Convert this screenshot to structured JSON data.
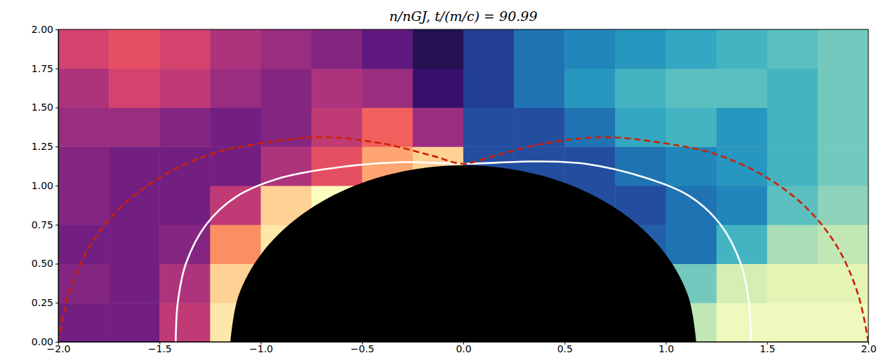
{
  "chart_data": {
    "type": "heatmap",
    "title": "n/nGJ, t/(m/c) = 90.99",
    "xlim": [
      -2,
      2
    ],
    "ylim": [
      0,
      2
    ],
    "xticks": [
      {
        "value": -2,
        "label": "−2.0"
      },
      {
        "value": -1.5,
        "label": "−1.5"
      },
      {
        "value": -1,
        "label": "−1.0"
      },
      {
        "value": -0.5,
        "label": "−0.5"
      },
      {
        "value": 0,
        "label": "0.0"
      },
      {
        "value": 0.5,
        "label": "0.5"
      },
      {
        "value": 1,
        "label": "1.0"
      },
      {
        "value": 1.5,
        "label": "1.5"
      },
      {
        "value": 2,
        "label": "2.0"
      }
    ],
    "yticks": [
      {
        "value": 0,
        "label": "0.00"
      },
      {
        "value": 0.25,
        "label": "0.25"
      },
      {
        "value": 0.5,
        "label": "0.50"
      },
      {
        "value": 0.75,
        "label": "0.75"
      },
      {
        "value": 1,
        "label": "1.00"
      },
      {
        "value": 1.25,
        "label": "1.25"
      },
      {
        "value": 1.5,
        "label": "1.50"
      },
      {
        "value": 1.75,
        "label": "1.75"
      },
      {
        "value": 2,
        "label": "2.00"
      }
    ],
    "x_bins": [
      -2,
      -1.75,
      -1.5,
      -1.25,
      -1,
      -0.75,
      -0.5,
      -0.25,
      0,
      0.25,
      0.5,
      0.75,
      1,
      1.25,
      1.5,
      1.75,
      2
    ],
    "y_bins": [
      0,
      0.25,
      0.5,
      0.75,
      1,
      1.25,
      1.5,
      1.75,
      2
    ],
    "clim": [
      0,
      1
    ],
    "cells": [
      [
        0.3,
        0.3,
        0.5,
        0.95,
        1,
        1,
        1,
        1,
        0.2,
        0.2,
        0.2,
        0.4,
        0.75,
        0.9,
        0.9,
        0.9
      ],
      [
        0.35,
        0.3,
        0.45,
        0.9,
        1,
        1,
        1,
        1,
        0.2,
        0.2,
        0.2,
        0.3,
        0.6,
        0.8,
        0.85,
        0.85
      ],
      [
        0.3,
        0.3,
        0.35,
        0.75,
        0.95,
        1,
        1,
        1,
        0.2,
        0.2,
        0.2,
        0.25,
        0.3,
        0.5,
        0.7,
        0.75
      ],
      [
        0.35,
        0.3,
        0.3,
        0.5,
        0.9,
        1,
        1,
        1,
        0.2,
        0.2,
        0.2,
        0.2,
        0.3,
        0.35,
        0.55,
        0.65
      ],
      [
        0.35,
        0.3,
        0.3,
        0.3,
        0.45,
        0.6,
        0.8,
        0.9,
        0.2,
        0.2,
        0.2,
        0.3,
        0.35,
        0.4,
        0.5,
        0.6
      ],
      [
        0.4,
        0.4,
        0.35,
        0.3,
        0.35,
        0.5,
        0.65,
        0.4,
        0.2,
        0.2,
        0.3,
        0.45,
        0.5,
        0.4,
        0.5,
        0.6
      ],
      [
        0.45,
        0.55,
        0.5,
        0.4,
        0.35,
        0.45,
        0.4,
        0.15,
        0.15,
        0.3,
        0.4,
        0.5,
        0.55,
        0.55,
        0.5,
        0.6
      ],
      [
        0.55,
        0.6,
        0.55,
        0.45,
        0.4,
        0.35,
        0.25,
        0.1,
        0.15,
        0.3,
        0.35,
        0.4,
        0.45,
        0.5,
        0.55,
        0.6
      ]
    ],
    "series": [
      {
        "type": "area",
        "color": "#000000",
        "x": [
          -1.15,
          -1.111,
          -0.996,
          -0.813,
          -0.575,
          -0.298,
          0,
          0.298,
          0.575,
          0.813,
          0.996,
          1.111,
          1.15
        ],
        "values": [
          0,
          0.292,
          0.565,
          0.799,
          0.979,
          1.091,
          1.13,
          1.091,
          0.979,
          0.799,
          0.565,
          0.292,
          0
        ]
      },
      {
        "type": "line",
        "color": "#ffffff",
        "x": [
          -1.42,
          -1.41,
          -1.37,
          -1.27,
          -1.12,
          -0.9,
          -0.6,
          -0.3,
          0,
          0.35,
          0.6,
          0.9,
          1.12,
          1.27,
          1.37,
          1.41,
          1.42
        ],
        "values": [
          0,
          0.25,
          0.5,
          0.75,
          0.93,
          1.05,
          1.12,
          1.15,
          1.14,
          1.155,
          1.14,
          1.05,
          0.93,
          0.75,
          0.5,
          0.25,
          0
        ]
      },
      {
        "type": "line",
        "color": "#cc2200",
        "line_style": "dashed",
        "x": [
          -2,
          -1.95,
          -1.85,
          -1.7,
          -1.5,
          -1.25,
          -1,
          -0.7,
          -0.4,
          -0.15,
          0,
          0.15,
          0.4,
          0.7,
          1,
          1.25,
          1.5,
          1.7,
          1.85,
          1.95,
          2
        ],
        "values": [
          0,
          0.3,
          0.6,
          0.85,
          1.05,
          1.2,
          1.27,
          1.31,
          1.27,
          1.19,
          1.14,
          1.19,
          1.27,
          1.31,
          1.27,
          1.2,
          1.05,
          0.85,
          0.6,
          0.3,
          0
        ]
      }
    ]
  }
}
